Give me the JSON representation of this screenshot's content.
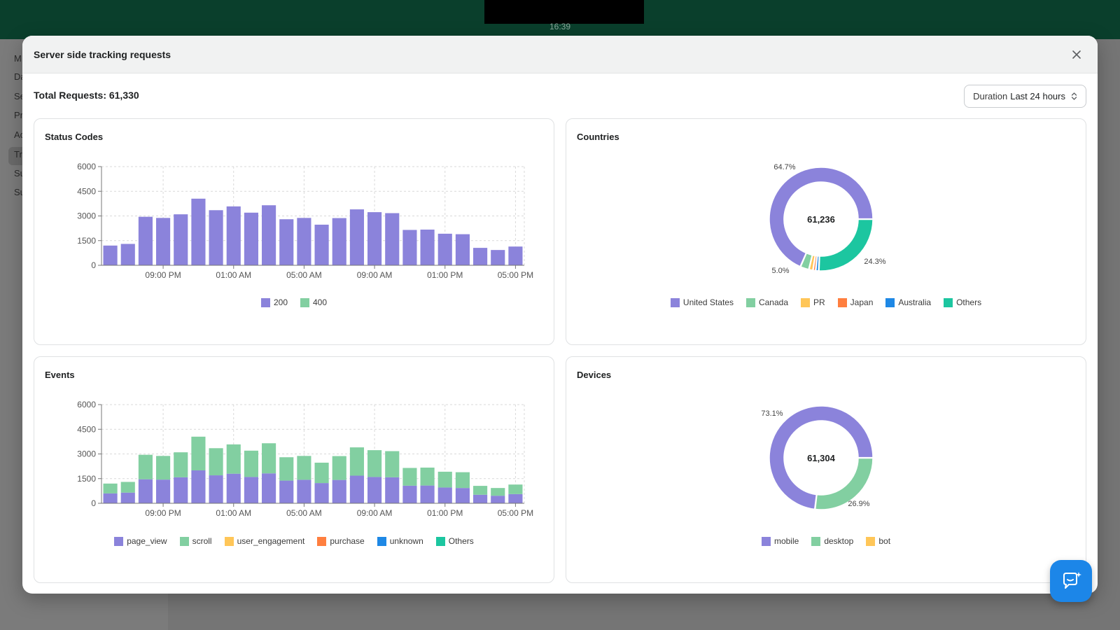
{
  "topbar": {
    "time": "16:39"
  },
  "background_sidebar": {
    "items": [
      "M",
      "Da",
      "Se",
      "Pr",
      "Ac",
      "Tr",
      "Su",
      "Su"
    ]
  },
  "modal": {
    "title": "Server side tracking requests",
    "total_label": "Total Requests: 61,330",
    "duration": {
      "label": "Duration",
      "value": "Last 24 hours"
    }
  },
  "cards": {
    "status": {
      "title": "Status Codes"
    },
    "countries": {
      "title": "Countries"
    },
    "events": {
      "title": "Events"
    },
    "devices": {
      "title": "Devices"
    }
  },
  "chart_data": [
    {
      "type": "bar",
      "title": "Status Codes",
      "ylim": [
        0,
        6000
      ],
      "yticks": [
        0,
        1500,
        3000,
        4500,
        6000
      ],
      "xtick_labels": [
        "09:00 PM",
        "01:00 AM",
        "05:00 AM",
        "09:00 AM",
        "01:00 PM",
        "05:00 PM"
      ],
      "grid": true,
      "legend_position": "bottom",
      "series": [
        {
          "name": "200",
          "color": "#8b83db",
          "values": [
            1200,
            1300,
            2950,
            2880,
            3100,
            4050,
            3350,
            3580,
            3200,
            3650,
            2800,
            2880,
            2470,
            2870,
            3400,
            3230,
            3170,
            2150,
            2170,
            1920,
            1890,
            1060,
            930,
            1140
          ]
        },
        {
          "name": "400",
          "color": "#82cfa1",
          "values": [
            0,
            0,
            0,
            0,
            0,
            0,
            0,
            0,
            0,
            0,
            0,
            0,
            0,
            0,
            0,
            0,
            0,
            0,
            0,
            0,
            0,
            0,
            0,
            0
          ]
        }
      ]
    },
    {
      "type": "pie",
      "title": "Countries",
      "center_label": "61,236",
      "legend_position": "bottom",
      "slices": [
        {
          "name": "United States",
          "value": 64.7,
          "label": "64.7%",
          "color": "#8b83db"
        },
        {
          "name": "Canada",
          "value": 2.6,
          "color": "#82cfa1"
        },
        {
          "name": "PR",
          "value": 1.2,
          "color": "#ffc658"
        },
        {
          "name": "Japan",
          "value": 0.8,
          "color": "#ff7f3f"
        },
        {
          "name": "Australia",
          "value": 0.9,
          "color": "#1e88e5"
        },
        {
          "name": "Others",
          "value": 24.3,
          "label": "24.3%",
          "color": "#1cc6a0"
        }
      ],
      "annotations": [
        "5.0%"
      ]
    },
    {
      "type": "bar",
      "stacked": true,
      "title": "Events",
      "ylim": [
        0,
        6000
      ],
      "yticks": [
        0,
        1500,
        3000,
        4500,
        6000
      ],
      "xtick_labels": [
        "09:00 PM",
        "01:00 AM",
        "05:00 AM",
        "09:00 AM",
        "01:00 PM",
        "05:00 PM"
      ],
      "grid": true,
      "legend_position": "bottom",
      "series": [
        {
          "name": "page_view",
          "color": "#8b83db",
          "values": [
            600,
            650,
            1460,
            1440,
            1580,
            2000,
            1700,
            1800,
            1600,
            1820,
            1380,
            1430,
            1230,
            1420,
            1680,
            1600,
            1580,
            1070,
            1080,
            960,
            930,
            520,
            460,
            560
          ]
        },
        {
          "name": "scroll",
          "color": "#82cfa1",
          "values": [
            600,
            650,
            1490,
            1440,
            1520,
            2050,
            1650,
            1780,
            1600,
            1830,
            1420,
            1450,
            1240,
            1450,
            1720,
            1630,
            1590,
            1080,
            1090,
            960,
            960,
            540,
            470,
            580
          ]
        },
        {
          "name": "user_engagement",
          "color": "#ffc658",
          "values": []
        },
        {
          "name": "purchase",
          "color": "#ff7f3f",
          "values": []
        },
        {
          "name": "unknown",
          "color": "#1e88e5",
          "values": []
        },
        {
          "name": "Others",
          "color": "#1cc6a0",
          "values": []
        }
      ]
    },
    {
      "type": "pie",
      "title": "Devices",
      "center_label": "61,304",
      "legend_position": "bottom",
      "slices": [
        {
          "name": "mobile",
          "value": 73.1,
          "label": "73.1%",
          "color": "#8b83db"
        },
        {
          "name": "desktop",
          "value": 26.9,
          "label": "26.9%",
          "color": "#82cfa1"
        },
        {
          "name": "bot",
          "value": 0,
          "color": "#ffc658"
        }
      ]
    }
  ]
}
